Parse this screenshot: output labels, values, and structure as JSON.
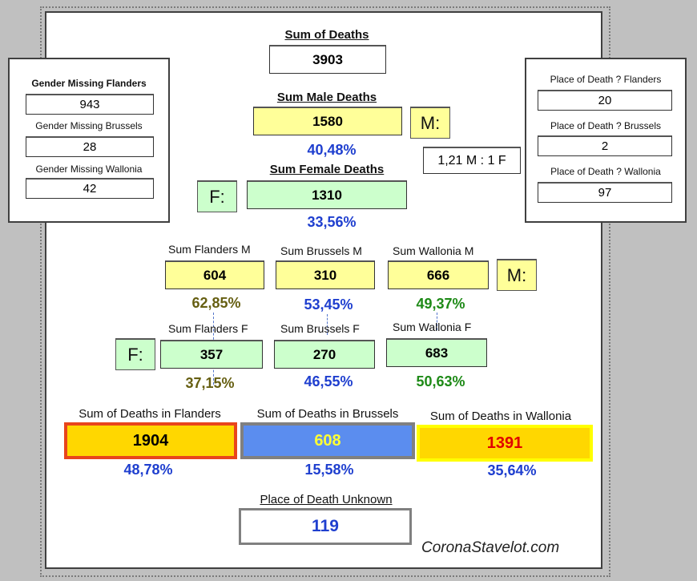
{
  "total": {
    "label": "Sum of Deaths",
    "value": "3903"
  },
  "male": {
    "label": "Sum Male Deaths",
    "value": "1580",
    "tag": "M:",
    "pct": "40,48%"
  },
  "female": {
    "label": "Sum Female Deaths",
    "value": "1310",
    "tag": "F:",
    "pct": "33,56%"
  },
  "ratio": "1,21 M : 1 F",
  "gender_missing": [
    {
      "label": "Gender Missing Flanders",
      "value": "943"
    },
    {
      "label": "Gender Missing Brussels",
      "value": "28"
    },
    {
      "label": "Gender Missing Wallonia",
      "value": "42"
    }
  ],
  "place_unknown_regions": [
    {
      "label": "Place of Death ? Flanders",
      "value": "20"
    },
    {
      "label": "Place of Death ? Brussels",
      "value": "2"
    },
    {
      "label": "Place of Death ? Wallonia",
      "value": "97"
    }
  ],
  "regions_male": {
    "tag": "M:",
    "items": [
      {
        "label": "Sum Flanders M",
        "value": "604",
        "pct": "62,85%"
      },
      {
        "label": "Sum Brussels M",
        "value": "310",
        "pct": "53,45%"
      },
      {
        "label": "Sum Wallonia M",
        "value": "666",
        "pct": "49,37%"
      }
    ]
  },
  "regions_female": {
    "tag": "F:",
    "items": [
      {
        "label": "Sum Flanders F",
        "value": "357",
        "pct": "37,15%"
      },
      {
        "label": "Sum Brussels F",
        "value": "270",
        "pct": "46,55%"
      },
      {
        "label": "Sum Wallonia F",
        "value": "683",
        "pct": "50,63%"
      }
    ]
  },
  "regions_total": [
    {
      "label": "Sum of Deaths in Flanders",
      "value": "1904",
      "pct": "48,78%",
      "fill": "#ffd700",
      "border": "#e8451c",
      "text": "#000000"
    },
    {
      "label": "Sum of Deaths in Brussels",
      "value": "608",
      "pct": "15,58%",
      "fill": "#5b8def",
      "border": "#808080",
      "text": "#ffff33"
    },
    {
      "label": "Sum of Deaths in Wallonia",
      "value": "1391",
      "pct": "35,64%",
      "fill": "#ffd700",
      "border": "#ffff00",
      "text": "#e00000"
    }
  ],
  "place_unknown": {
    "label": "Place of Death Unknown",
    "value": "119"
  },
  "footer": "CoronaStavelot.com"
}
